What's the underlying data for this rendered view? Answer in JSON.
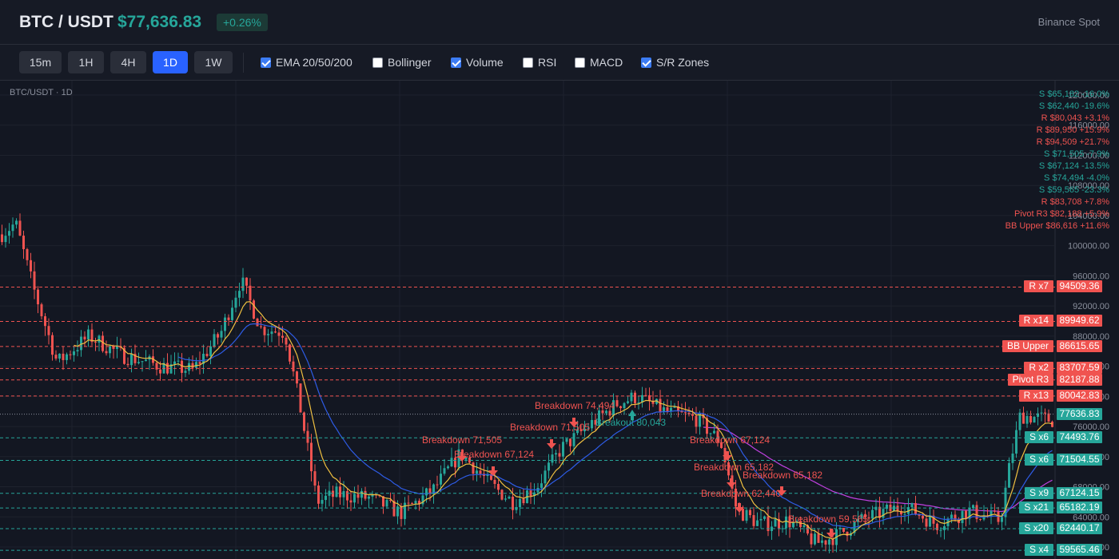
{
  "header": {
    "pair": "BTC / USDT",
    "price": "$77,636.83",
    "change": "+0.26%",
    "exchange": "Binance Spot"
  },
  "toolbar": {
    "timeframes": [
      {
        "label": "15m",
        "active": false
      },
      {
        "label": "1H",
        "active": false
      },
      {
        "label": "4H",
        "active": false
      },
      {
        "label": "1D",
        "active": true
      },
      {
        "label": "1W",
        "active": false
      }
    ],
    "options": [
      {
        "label": "EMA 20/50/200",
        "checked": true
      },
      {
        "label": "Bollinger",
        "checked": false
      },
      {
        "label": "Volume",
        "checked": true
      },
      {
        "label": "RSI",
        "checked": false
      },
      {
        "label": "MACD",
        "checked": false
      },
      {
        "label": "S/R Zones",
        "checked": true
      }
    ]
  },
  "chart": {
    "title": "BTC/USDT · 1D",
    "y_ticks": [
      "124000.00",
      "120000.00",
      "116000.00",
      "112000.00",
      "108000.00",
      "104000.00",
      "100000.00",
      "96000.00",
      "92000.00",
      "88000.00",
      "84000.00",
      "80000.00",
      "76000.00",
      "72000.00",
      "68000.00",
      "64000.00",
      "60000.00"
    ],
    "colors": {
      "bg": "#131722",
      "up": "#26a69a",
      "down": "#ef5350",
      "ema20": "#f0c040",
      "ema50": "#2e5ce6",
      "ema200": "#c040e0"
    },
    "sr_list": [
      {
        "text": "S $65,182 -16.0%",
        "kind": "S"
      },
      {
        "text": "S $62,440 -19.6%",
        "kind": "S"
      },
      {
        "text": "R $80,043 +3.1%",
        "kind": "R"
      },
      {
        "text": "R $89,950 +15.9%",
        "kind": "R"
      },
      {
        "text": "R $94,509 +21.7%",
        "kind": "R"
      },
      {
        "text": "S $71,505 -7.9%",
        "kind": "S"
      },
      {
        "text": "S $67,124 -13.5%",
        "kind": "S"
      },
      {
        "text": "S $74,494 -4.0%",
        "kind": "S"
      },
      {
        "text": "S $59,565 -23.3%",
        "kind": "S"
      },
      {
        "text": "R $83,708 +7.8%",
        "kind": "R"
      },
      {
        "text": "Pivot R3 $82,188 +5.9%",
        "kind": "R"
      },
      {
        "text": "BB Upper $86,616 +11.6%",
        "kind": "R"
      }
    ],
    "levels": [
      {
        "tag": "R x7",
        "value": "94509.36",
        "kind": "R"
      },
      {
        "tag": "R x14",
        "value": "89949.62",
        "kind": "R"
      },
      {
        "tag": "BB Upper",
        "value": "86615.65",
        "kind": "R"
      },
      {
        "tag": "R x2",
        "value": "83707.59",
        "kind": "R"
      },
      {
        "tag": "Pivot R3",
        "value": "82187.88",
        "kind": "R"
      },
      {
        "tag": "R x13",
        "value": "80042.83",
        "kind": "R"
      },
      {
        "tag": "",
        "value": "77636.83",
        "kind": "C"
      },
      {
        "tag": "S x6",
        "value": "74493.76",
        "kind": "S"
      },
      {
        "tag": "S x6",
        "value": "71504.55",
        "kind": "S"
      },
      {
        "tag": "S x9",
        "value": "67124.15",
        "kind": "S"
      },
      {
        "tag": "S x21",
        "value": "65182.19",
        "kind": "S"
      },
      {
        "tag": "S x20",
        "value": "62440.17",
        "kind": "S"
      },
      {
        "tag": "S x4",
        "value": "59565.46",
        "kind": "S"
      }
    ],
    "annotations": [
      {
        "text": "Breakdown 71,505",
        "kind": "down"
      },
      {
        "text": "Breakdown 74,494",
        "kind": "down"
      },
      {
        "text": "Breakdown 71,505",
        "kind": "down"
      },
      {
        "text": "Breakout 80,043",
        "kind": "up"
      },
      {
        "text": "Breakdown 67,124",
        "kind": "down"
      },
      {
        "text": "Breakdown 67,124",
        "kind": "down"
      },
      {
        "text": "Breakdown 65,182",
        "kind": "down"
      },
      {
        "text": "Breakdown 65,182",
        "kind": "down"
      },
      {
        "text": "Breakdown 62,440",
        "kind": "down"
      },
      {
        "text": "Breakdown 59,565",
        "kind": "down"
      }
    ]
  }
}
